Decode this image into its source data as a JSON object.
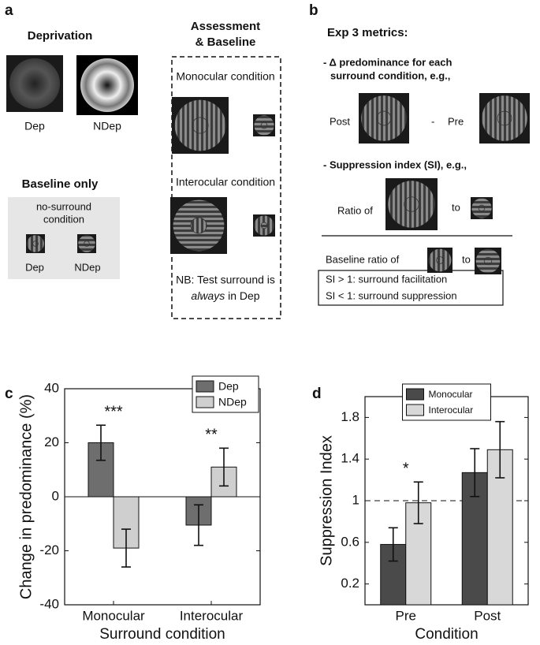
{
  "panels": {
    "a": {
      "label": "a",
      "deprivation": "Deprivation",
      "dep": "Dep",
      "ndep": "NDep",
      "baseline_only": "Baseline only",
      "no_surround_1": "no-surround",
      "no_surround_2": "condition",
      "base_dep": "Dep",
      "base_ndep": "NDep",
      "assessment_1": "Assessment",
      "assessment_2": "& Baseline",
      "monocular": "Monocular condition",
      "interocular": "Interocular condition",
      "note_1": "NB:  Test surround is",
      "note_2_italic": "always",
      "note_2_rest": "in Dep"
    },
    "b": {
      "label": "b",
      "title": "Exp 3 metrics:",
      "delta_1": "- Δ predominance for each",
      "delta_2": "surround condition, e.g.,",
      "post": "Post",
      "minus": "-",
      "pre": "Pre",
      "si": "- Suppression index (SI), e.g.,",
      "ratio_of": "Ratio of",
      "to_1": "to",
      "baseline_ratio": "Baseline ratio of",
      "to_2": "to",
      "si_gt": "SI > 1: surround facilitation",
      "si_lt": "SI < 1: surround suppression"
    }
  },
  "chart_data": [
    {
      "type": "bar",
      "label": "c",
      "y_label": "Change in predominance (%)",
      "x_label": "Surround condition",
      "categories": [
        "Monocular",
        "Interocular"
      ],
      "series": [
        {
          "name": "Dep",
          "color": "#6e6e6e",
          "values": [
            20,
            -10.5
          ],
          "errors": [
            6.5,
            7.5
          ]
        },
        {
          "name": "NDep",
          "color": "#cfcfcf",
          "values": [
            -19,
            11
          ],
          "errors": [
            7,
            7
          ]
        }
      ],
      "ylim": [
        -40,
        40
      ],
      "yticks": [
        -40,
        -20,
        0,
        20,
        40
      ],
      "zero_line": true,
      "annotations": [
        {
          "text": "***",
          "category": "Monocular"
        },
        {
          "text": "**",
          "category": "Interocular"
        }
      ],
      "legend": "upper right"
    },
    {
      "type": "bar",
      "label": "d",
      "y_label": "Suppression Index",
      "x_label": "Condition",
      "categories": [
        "Pre",
        "Post"
      ],
      "series": [
        {
          "name": "Monocular",
          "color": "#4a4a4a",
          "values": [
            0.58,
            1.27
          ],
          "errors": [
            0.16,
            0.23
          ]
        },
        {
          "name": "Interocular",
          "color": "#d8d8d8",
          "values": [
            0.98,
            1.49
          ],
          "errors": [
            0.2,
            0.27
          ]
        }
      ],
      "ylim": [
        0,
        2
      ],
      "yticks": [
        0.2,
        0.6,
        1,
        1.4,
        1.8
      ],
      "reference_line": 1,
      "annotations": [
        {
          "text": "*",
          "category": "Pre"
        }
      ],
      "legend": "upper center"
    }
  ]
}
